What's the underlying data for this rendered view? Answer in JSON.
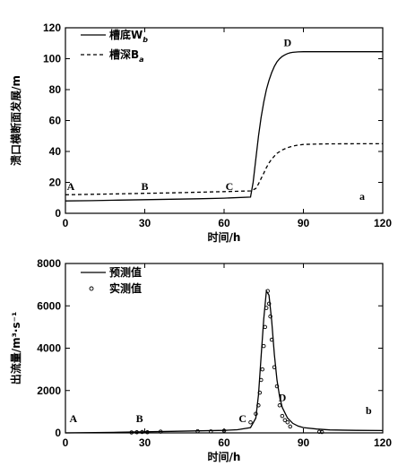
{
  "chart_data": [
    {
      "type": "line",
      "panel_label": "a",
      "ylabel": "溃口横断面发展/m",
      "xlabel": "时间/h",
      "xlim": [
        0,
        120
      ],
      "ylim": [
        0,
        120
      ],
      "xticks": [
        0,
        30,
        60,
        90,
        120
      ],
      "yticks": [
        0,
        20,
        40,
        60,
        80,
        100,
        120
      ],
      "legend_position": "top-left",
      "series": [
        {
          "name": "槽底W",
          "name_sub": "b",
          "style": "solid",
          "x": [
            0,
            10,
            20,
            30,
            40,
            50,
            60,
            70,
            71,
            72,
            73,
            74,
            75,
            76,
            77,
            78,
            79,
            80,
            81,
            82,
            83,
            84,
            85,
            86,
            88,
            90,
            95,
            100,
            110,
            120
          ],
          "y": [
            8,
            8.2,
            8.5,
            8.8,
            9.1,
            9.4,
            9.8,
            10.5,
            20,
            35,
            50,
            62,
            72,
            80,
            86,
            91,
            95,
            98,
            100,
            101.5,
            102.5,
            103.3,
            103.8,
            104.1,
            104.4,
            104.5,
            104.5,
            104.5,
            104.5,
            104.5
          ]
        },
        {
          "name": "槽深B",
          "name_sub": "a",
          "style": "dashed",
          "x": [
            0,
            10,
            20,
            30,
            40,
            50,
            60,
            70,
            72,
            73,
            74,
            75,
            76,
            77,
            78,
            79,
            80,
            82,
            84,
            86,
            88,
            90,
            95,
            100,
            110,
            120
          ],
          "y": [
            12,
            12.3,
            12.6,
            12.9,
            13.2,
            13.6,
            14,
            14.5,
            16,
            19,
            22.5,
            26,
            29.5,
            32.5,
            35,
            37,
            38.8,
            41,
            42.5,
            43.5,
            44.1,
            44.5,
            44.8,
            44.9,
            45,
            45
          ]
        }
      ],
      "annotations": [
        {
          "text": "A",
          "x": 2,
          "y": 15
        },
        {
          "text": "B",
          "x": 30,
          "y": 15
        },
        {
          "text": "C",
          "x": 62,
          "y": 15
        },
        {
          "text": "D",
          "x": 84,
          "y": 108
        }
      ]
    },
    {
      "type": "line",
      "panel_label": "b",
      "ylabel": "出流量/m³·s⁻¹",
      "xlabel": "时间/h",
      "xlim": [
        0,
        120
      ],
      "ylim": [
        0,
        8000
      ],
      "xticks": [
        0,
        30,
        60,
        90,
        120
      ],
      "yticks": [
        0,
        2000,
        4000,
        6000,
        8000
      ],
      "legend_position": "top-left",
      "series": [
        {
          "name": "预测值",
          "style": "solid",
          "x": [
            0,
            20,
            40,
            60,
            65,
            70,
            72,
            73,
            74,
            75,
            76,
            77,
            78,
            79,
            80,
            81,
            82,
            84,
            86,
            88,
            90,
            95,
            100,
            110,
            120
          ],
          "y": [
            0,
            30,
            70,
            120,
            150,
            250,
            700,
            1800,
            3600,
            5400,
            6700,
            6500,
            5300,
            3700,
            2500,
            1700,
            1200,
            700,
            450,
            320,
            250,
            180,
            140,
            120,
            110
          ]
        },
        {
          "name": "实测值",
          "style": "markers",
          "x": [
            25,
            27,
            29,
            31,
            36,
            50,
            55,
            60,
            70,
            72,
            73,
            73.5,
            74,
            74.5,
            75,
            75.5,
            76,
            76.5,
            77,
            77.5,
            78,
            79,
            80,
            81,
            82,
            83,
            84,
            85,
            96,
            97
          ],
          "y": [
            20,
            30,
            40,
            30,
            60,
            80,
            70,
            100,
            500,
            900,
            1300,
            1900,
            2500,
            3000,
            4100,
            5000,
            5900,
            6700,
            6100,
            5500,
            4400,
            3100,
            2200,
            1300,
            800,
            600,
            500,
            300,
            50,
            40
          ]
        }
      ],
      "annotations": [
        {
          "text": "A",
          "x": 3,
          "y": 500
        },
        {
          "text": "B",
          "x": 28,
          "y": 500
        },
        {
          "text": "C",
          "x": 67,
          "y": 500
        },
        {
          "text": "D",
          "x": 82,
          "y": 1500
        }
      ]
    }
  ]
}
